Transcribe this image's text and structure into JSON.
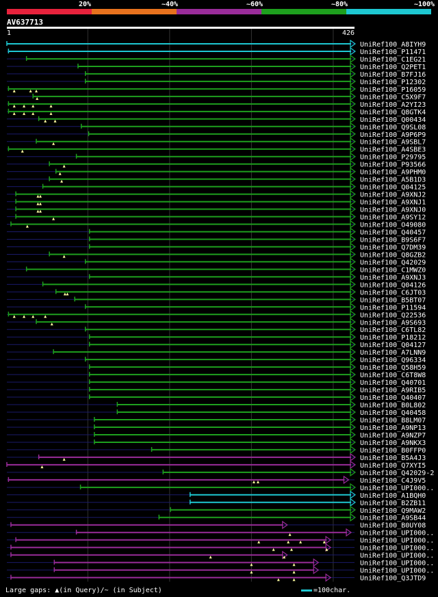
{
  "query": {
    "id": "AV637713",
    "length": 426,
    "start_label": "1",
    "end_label": "426"
  },
  "colors": {
    "id_20": "#e8223c",
    "id_40": "#e8721e",
    "id_60": "#9a2c9a",
    "id_80": "#1ea01e",
    "id_100": "#1ec8d2",
    "gap": "#1a1a6a",
    "grid": "#333333",
    "insert": "#ffffa0"
  },
  "legend": {
    "text": "Large gaps: ▲(in Query)/~ (in Subject)",
    "scale_text": "=100char."
  },
  "chart_data": {
    "type": "alignment",
    "title": "AV637713",
    "xlim": [
      1,
      426
    ],
    "identity_scale": [
      {
        "label": "20%",
        "color_key": "id_20"
      },
      {
        "label": "~40%",
        "color_key": "id_40"
      },
      {
        "label": "~60%",
        "color_key": "id_60"
      },
      {
        "label": "~80%",
        "color_key": "id_80"
      },
      {
        "label": "~100%",
        "color_key": "id_100"
      }
    ],
    "hits": [
      {
        "name": "UniRef100_A8IYH9",
        "start": 1,
        "end": 426,
        "color_key": "id_100",
        "ins": []
      },
      {
        "name": "UniRef100_P11471",
        "start": 3,
        "end": 426,
        "color_key": "id_100",
        "ins": []
      },
      {
        "name": "UniRef100_C1EG21",
        "start": 25,
        "end": 426,
        "color_key": "id_80",
        "ins": []
      },
      {
        "name": "UniRef100_Q2PET1",
        "start": 88,
        "end": 426,
        "color_key": "id_80",
        "ins": []
      },
      {
        "name": "UniRef100_B7FJ16",
        "start": 97,
        "end": 426,
        "color_key": "id_80",
        "ins": []
      },
      {
        "name": "UniRef100_P12302",
        "start": 97,
        "end": 426,
        "color_key": "id_80",
        "ins": []
      },
      {
        "name": "UniRef100_P16059",
        "start": 3,
        "end": 426,
        "color_key": "id_80",
        "ins": [
          10,
          30,
          37
        ]
      },
      {
        "name": "UniRef100_C5X9F7",
        "start": 33,
        "end": 426,
        "color_key": "id_80",
        "ins": [
          38
        ]
      },
      {
        "name": "UniRef100_A2YI23",
        "start": 3,
        "end": 426,
        "color_key": "id_80",
        "ins": [
          10,
          22,
          33,
          55
        ]
      },
      {
        "name": "UniRef100_Q8GTK4",
        "start": 3,
        "end": 426,
        "color_key": "id_80",
        "ins": [
          10,
          22,
          33,
          55
        ]
      },
      {
        "name": "UniRef100_Q00434",
        "start": 40,
        "end": 426,
        "color_key": "id_80",
        "ins": [
          48,
          60
        ]
      },
      {
        "name": "UniRef100_Q9SL08",
        "start": 92,
        "end": 426,
        "color_key": "id_80",
        "ins": []
      },
      {
        "name": "UniRef100_A9P6P9",
        "start": 101,
        "end": 426,
        "color_key": "id_80",
        "ins": []
      },
      {
        "name": "UniRef100_A9SBL7",
        "start": 37,
        "end": 426,
        "color_key": "id_80",
        "ins": [
          58
        ]
      },
      {
        "name": "UniRef100_A4SBE3",
        "start": 3,
        "end": 426,
        "color_key": "id_80",
        "ins": [
          20
        ]
      },
      {
        "name": "UniRef100_P29795",
        "start": 86,
        "end": 426,
        "color_key": "id_80",
        "ins": []
      },
      {
        "name": "UniRef100_P93566",
        "start": 53,
        "end": 426,
        "color_key": "id_80",
        "ins": [
          71
        ]
      },
      {
        "name": "UniRef100_A9PHM0",
        "start": 61,
        "end": 426,
        "color_key": "id_80",
        "ins": [
          66
        ]
      },
      {
        "name": "UniRef100_A5B1D3",
        "start": 53,
        "end": 426,
        "color_key": "id_80",
        "ins": [
          68
        ]
      },
      {
        "name": "UniRef100_Q04125",
        "start": 45,
        "end": 426,
        "color_key": "id_80",
        "ins": []
      },
      {
        "name": "UniRef100_A9XNJ2",
        "start": 12,
        "end": 426,
        "color_key": "id_80",
        "ins": [
          39,
          42
        ]
      },
      {
        "name": "UniRef100_A9XNJ1",
        "start": 12,
        "end": 426,
        "color_key": "id_80",
        "ins": [
          39,
          42
        ]
      },
      {
        "name": "UniRef100_A9XNJ0",
        "start": 12,
        "end": 426,
        "color_key": "id_80",
        "ins": [
          39,
          42
        ]
      },
      {
        "name": "UniRef100_A9SY12",
        "start": 12,
        "end": 426,
        "color_key": "id_80",
        "ins": [
          58
        ]
      },
      {
        "name": "UniRef100_O49080",
        "start": 6,
        "end": 426,
        "color_key": "id_80",
        "ins": [
          26
        ]
      },
      {
        "name": "UniRef100_Q40457",
        "start": 102,
        "end": 426,
        "color_key": "id_80",
        "ins": []
      },
      {
        "name": "UniRef100_B9S6F7",
        "start": 102,
        "end": 426,
        "color_key": "id_80",
        "ins": []
      },
      {
        "name": "UniRef100_Q7DM39",
        "start": 102,
        "end": 426,
        "color_key": "id_80",
        "ins": []
      },
      {
        "name": "UniRef100_Q8GZB2",
        "start": 53,
        "end": 426,
        "color_key": "id_80",
        "ins": [
          71
        ]
      },
      {
        "name": "UniRef100_Q42029",
        "start": 97,
        "end": 426,
        "color_key": "id_80",
        "ins": []
      },
      {
        "name": "UniRef100_C1MWZ0",
        "start": 25,
        "end": 426,
        "color_key": "id_80",
        "ins": []
      },
      {
        "name": "UniRef100_A9XNJ3",
        "start": 102,
        "end": 426,
        "color_key": "id_80",
        "ins": []
      },
      {
        "name": "UniRef100_Q04126",
        "start": 45,
        "end": 426,
        "color_key": "id_80",
        "ins": []
      },
      {
        "name": "UniRef100_C6JT03",
        "start": 61,
        "end": 426,
        "color_key": "id_80",
        "ins": [
          72,
          75
        ]
      },
      {
        "name": "UniRef100_B5BT07",
        "start": 84,
        "end": 426,
        "color_key": "id_80",
        "ins": []
      },
      {
        "name": "UniRef100_P11594",
        "start": 97,
        "end": 426,
        "color_key": "id_80",
        "ins": []
      },
      {
        "name": "UniRef100_Q22536",
        "start": 3,
        "end": 426,
        "color_key": "id_80",
        "ins": [
          10,
          22,
          33,
          48
        ]
      },
      {
        "name": "UniRef100_A9S693",
        "start": 37,
        "end": 426,
        "color_key": "id_80",
        "ins": [
          56
        ]
      },
      {
        "name": "UniRef100_C6TL82",
        "start": 97,
        "end": 426,
        "color_key": "id_80",
        "ins": []
      },
      {
        "name": "UniRef100_P18212",
        "start": 102,
        "end": 426,
        "color_key": "id_80",
        "ins": []
      },
      {
        "name": "UniRef100_Q04127",
        "start": 102,
        "end": 426,
        "color_key": "id_80",
        "ins": []
      },
      {
        "name": "UniRef100_A7LNN9",
        "start": 58,
        "end": 426,
        "color_key": "id_80",
        "ins": []
      },
      {
        "name": "UniRef100_Q96334",
        "start": 97,
        "end": 426,
        "color_key": "id_80",
        "ins": []
      },
      {
        "name": "UniRef100_Q58H59",
        "start": 102,
        "end": 426,
        "color_key": "id_80",
        "ins": []
      },
      {
        "name": "UniRef100_C6T8W8",
        "start": 102,
        "end": 426,
        "color_key": "id_80",
        "ins": []
      },
      {
        "name": "UniRef100_Q40701",
        "start": 102,
        "end": 426,
        "color_key": "id_80",
        "ins": []
      },
      {
        "name": "UniRef100_A9RIB5",
        "start": 102,
        "end": 426,
        "color_key": "id_80",
        "ins": []
      },
      {
        "name": "UniRef100_Q40407",
        "start": 102,
        "end": 426,
        "color_key": "id_80",
        "ins": []
      },
      {
        "name": "UniRef100_B0L802",
        "start": 136,
        "end": 426,
        "color_key": "id_80",
        "ins": []
      },
      {
        "name": "UniRef100_Q40458",
        "start": 136,
        "end": 426,
        "color_key": "id_80",
        "ins": []
      },
      {
        "name": "UniRef100_B8LM07",
        "start": 108,
        "end": 426,
        "color_key": "id_80",
        "ins": []
      },
      {
        "name": "UniRef100_A9NP13",
        "start": 108,
        "end": 426,
        "color_key": "id_80",
        "ins": []
      },
      {
        "name": "UniRef100_A9NZP7",
        "start": 108,
        "end": 426,
        "color_key": "id_80",
        "ins": []
      },
      {
        "name": "UniRef100_A9NKX3",
        "start": 108,
        "end": 426,
        "color_key": "id_80",
        "ins": []
      },
      {
        "name": "UniRef100_B0FFP0",
        "start": 178,
        "end": 426,
        "color_key": "id_80",
        "ins": []
      },
      {
        "name": "UniRef100_B5A4J3",
        "start": 40,
        "end": 426,
        "color_key": "id_60",
        "ins": [
          71
        ]
      },
      {
        "name": "UniRef100_Q7XYI5",
        "start": 1,
        "end": 426,
        "color_key": "id_60",
        "ins": [
          44
        ]
      },
      {
        "name": "UniRef100_Q42029-2",
        "start": 192,
        "end": 426,
        "color_key": "id_80",
        "ins": []
      },
      {
        "name": "UniRef100_C4J9V5",
        "start": 3,
        "end": 418,
        "color_key": "id_60",
        "ins": [
          303,
          308
        ]
      },
      {
        "name": "UniRef100_UPI000..",
        "start": 91,
        "end": 426,
        "color_key": "id_80",
        "ins": []
      },
      {
        "name": "UniRef100_A1BQH0",
        "start": 225,
        "end": 426,
        "color_key": "id_100",
        "ins": []
      },
      {
        "name": "UniRef100_B2ZB11",
        "start": 225,
        "end": 426,
        "color_key": "id_100",
        "ins": []
      },
      {
        "name": "UniRef100_Q9MAW2",
        "start": 201,
        "end": 426,
        "color_key": "id_80",
        "ins": []
      },
      {
        "name": "UniRef100_A9SB44",
        "start": 187,
        "end": 426,
        "color_key": "id_80",
        "ins": []
      },
      {
        "name": "UniRef100_B0UY08",
        "start": 6,
        "end": 343,
        "color_key": "id_60",
        "ins": []
      },
      {
        "name": "UniRef100_UPI000..",
        "start": 86,
        "end": 421,
        "color_key": "id_60",
        "ins": [
          347
        ]
      },
      {
        "name": "UniRef100_UPI000..",
        "start": 12,
        "end": 396,
        "color_key": "id_60",
        "ins": [
          309,
          345,
          360,
          389
        ]
      },
      {
        "name": "UniRef100_UPI000..",
        "start": 6,
        "end": 396,
        "color_key": "id_60",
        "ins": [
          327,
          349,
          392
        ]
      },
      {
        "name": "UniRef100_UPI000..",
        "start": 6,
        "end": 343,
        "color_key": "id_60",
        "ins": [
          250,
          340
        ]
      },
      {
        "name": "UniRef100_UPI000..",
        "start": 59,
        "end": 381,
        "color_key": "id_60",
        "ins": [
          300,
          352
        ]
      },
      {
        "name": "UniRef100_UPI000..",
        "start": 59,
        "end": 381,
        "color_key": "id_60",
        "ins": [
          300,
          352
        ]
      },
      {
        "name": "UniRef100_Q3JTD9",
        "start": 6,
        "end": 396,
        "color_key": "id_60",
        "ins": [
          333,
          352
        ]
      }
    ]
  }
}
